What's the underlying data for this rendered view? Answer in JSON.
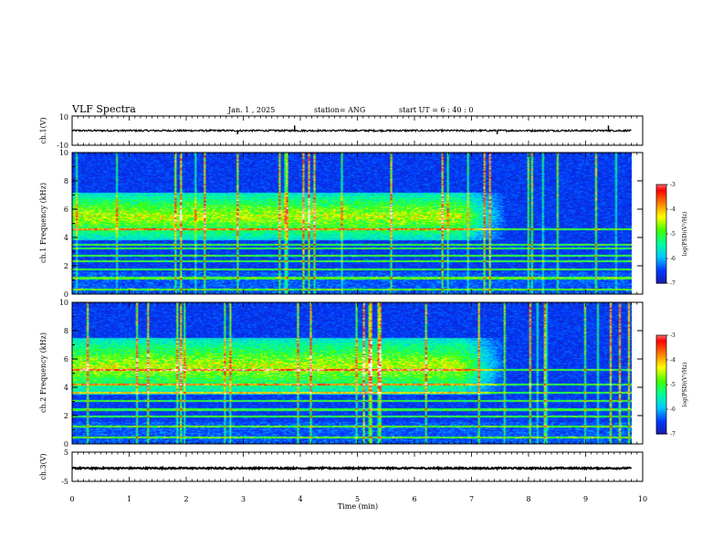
{
  "header": {
    "title": "VLF Spectra",
    "date": "Jan. 1 , 2025",
    "station": "station= ANG",
    "start": "start UT =  6 : 40 : 0"
  },
  "colors": {
    "colormap": [
      "#1a1aa8",
      "#0038ff",
      "#00c8ff",
      "#00ff9a",
      "#40ff00",
      "#ffff00",
      "#ff8000",
      "#ff0000",
      "#ffffff"
    ],
    "trace": "#000000"
  },
  "chart_data": [
    {
      "type": "line",
      "name": "ch1-waveform",
      "ylabel": "ch.1(V)",
      "ylim": [
        -10,
        10
      ],
      "yticks": [
        "10",
        "-10"
      ],
      "xlim": [
        0,
        10
      ],
      "baseline": 0,
      "noise_amplitude": 0.6,
      "spikes": [
        {
          "x": 3.9,
          "y": 3.5
        },
        {
          "x": 2.9,
          "y": -2.5
        },
        {
          "x": 7.45,
          "y": -2.5
        },
        {
          "x": 9.4,
          "y": 3.5
        }
      ]
    },
    {
      "type": "heatmap",
      "name": "ch1-spectrogram",
      "ylabel": "ch.1 Frequency (kHz)",
      "xlim": [
        0,
        9.8
      ],
      "ylim": [
        0,
        10
      ],
      "yticks": [
        "0",
        "2",
        "4",
        "6",
        "8",
        "10"
      ],
      "colorbar": {
        "label": "log(PSD)(V²/Hz)",
        "range": [
          -7,
          -3
        ],
        "ticks": [
          "-3",
          "-4",
          "-5",
          "-6",
          "-7"
        ]
      },
      "emission_band_khz": [
        3.8,
        7.2
      ],
      "emission_end_min": 6.8,
      "tonal_lines_khz": [
        0.3,
        1.1,
        1.7,
        2.3,
        2.7,
        3.2,
        3.5,
        4.6
      ]
    },
    {
      "type": "heatmap",
      "name": "ch2-spectrogram",
      "ylabel": "ch.2 Frequency (kHz)",
      "xlim": [
        0,
        9.8
      ],
      "ylim": [
        0,
        10
      ],
      "yticks": [
        "0",
        "2",
        "4",
        "6",
        "8",
        "10"
      ],
      "colorbar": {
        "label": "log(PSD)(V²/Hz)",
        "range": [
          -7,
          -3
        ],
        "ticks": [
          "-3",
          "-4",
          "-5",
          "-6",
          "-7"
        ]
      },
      "emission_band_khz": [
        3.5,
        7.5
      ],
      "emission_end_min": 6.8,
      "tonal_lines_khz": [
        0.4,
        1.2,
        1.9,
        2.4,
        3.0,
        3.6,
        4.2,
        5.2
      ]
    },
    {
      "type": "line",
      "name": "ch3-waveform",
      "ylabel": "ch.3(V)",
      "ylim": [
        -5,
        5
      ],
      "yticks": [
        "5",
        "-5"
      ],
      "xlim": [
        0,
        10
      ],
      "baseline": -0.5,
      "noise_amplitude": 0.25
    }
  ],
  "xaxis": {
    "label": "Time (min)",
    "ticks": [
      "0",
      "1",
      "2",
      "3",
      "4",
      "5",
      "6",
      "7",
      "8",
      "9",
      "10"
    ],
    "range": [
      0,
      10
    ]
  }
}
